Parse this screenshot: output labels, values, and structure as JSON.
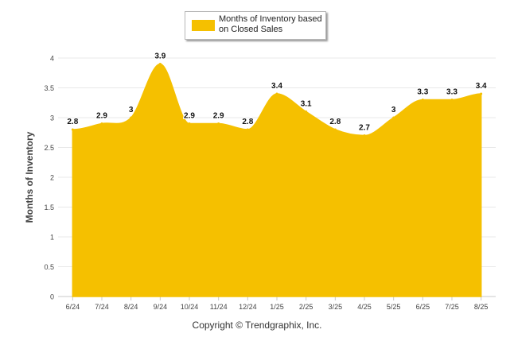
{
  "chart_data": {
    "type": "area",
    "categories": [
      "6/24",
      "7/24",
      "8/24",
      "9/24",
      "10/24",
      "11/24",
      "12/24",
      "1/25",
      "2/25",
      "3/25",
      "4/25",
      "5/25",
      "6/25",
      "7/25",
      "8/25"
    ],
    "series": [
      {
        "name": "Months of Inventory based on Closed Sales",
        "values": [
          2.8,
          2.9,
          3,
          3.9,
          2.9,
          2.9,
          2.8,
          3.4,
          3.1,
          2.8,
          2.7,
          3,
          3.3,
          3.3,
          3.4
        ],
        "color": "#F5C000"
      }
    ],
    "data_labels": [
      "2.8",
      "2.9",
      "3",
      "3.9",
      "2.9",
      "2.9",
      "2.8",
      "3.4",
      "3.1",
      "2.8",
      "2.7",
      "3",
      "3.3",
      "3.3",
      "3.4"
    ],
    "ylabel": "Months of Inventory",
    "xlabel": "",
    "ylim": [
      0,
      4
    ],
    "yticks": [
      "0",
      "0.5",
      "1",
      "1.5",
      "2",
      "2.5",
      "3",
      "3.5",
      "4"
    ],
    "grid": true,
    "legend_position": "top-center"
  },
  "copyright": "Copyright © Trendgraphix, Inc."
}
